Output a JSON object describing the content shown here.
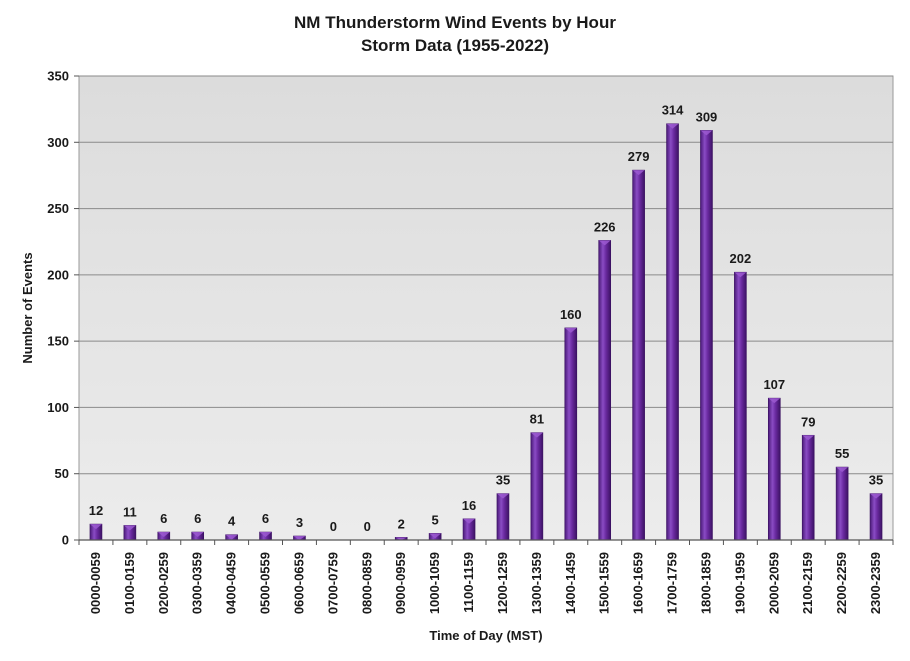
{
  "chart_data": {
    "type": "bar",
    "title": "NM Thunderstorm Wind Events by Hour",
    "subtitle": "Storm Data (1955-2022)",
    "xlabel": "Time of Day (MST)",
    "ylabel": "Number of Events",
    "ylim": [
      0,
      350
    ],
    "yticks": [
      0,
      50,
      100,
      150,
      200,
      250,
      300,
      350
    ],
    "grid": true,
    "legend": "none",
    "bar_color": "#6a2aa0",
    "bar_color_light": "#9b59d0",
    "plot_background": "#e6e6e6",
    "categories": [
      "0000-0059",
      "0100-0159",
      "0200-0259",
      "0300-0359",
      "0400-0459",
      "0500-0559",
      "0600-0659",
      "0700-0759",
      "0800-0859",
      "0900-0959",
      "1000-1059",
      "1100-1159",
      "1200-1259",
      "1300-1359",
      "1400-1459",
      "1500-1559",
      "1600-1659",
      "1700-1759",
      "1800-1859",
      "1900-1959",
      "2000-2059",
      "2100-2159",
      "2200-2259",
      "2300-2359"
    ],
    "values": [
      12,
      11,
      6,
      6,
      4,
      6,
      3,
      0,
      0,
      2,
      5,
      16,
      35,
      81,
      160,
      226,
      279,
      314,
      309,
      202,
      107,
      79,
      55,
      35
    ]
  }
}
